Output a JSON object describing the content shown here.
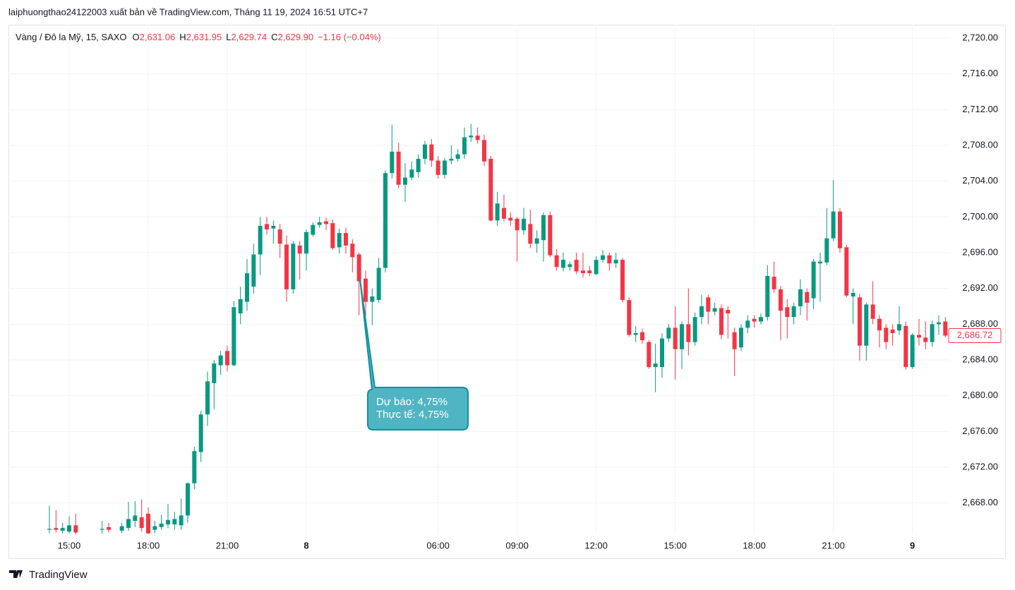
{
  "header": {
    "text": "laiphuongthao24122003 xuất bản về TradingView.com, Tháng 11 19, 2024 16:51 UTC+7"
  },
  "logo": {
    "text": "TradingView"
  },
  "chart_data": {
    "type": "candlestick",
    "legend": {
      "symbol": "Vàng / Đô la Mỹ, 15, SAXO",
      "fields": [
        {
          "label": "O",
          "value": "2,631.06"
        },
        {
          "label": "H",
          "value": "2,631.95"
        },
        {
          "label": "L",
          "value": "2,629.74"
        },
        {
          "label": "C",
          "value": "2,629.90"
        }
      ],
      "change": "−1.16 (−0.04%)"
    },
    "up_color": "#089981",
    "down_color": "#f23645",
    "grid": true,
    "annotation": {
      "lines": [
        "Dự báo: 4,75%",
        "Thực tế: 4,75%"
      ]
    },
    "last_price": {
      "value": 2686.72,
      "label": "2,686.72"
    },
    "ylim": [
      2664.5,
      2721.5
    ],
    "yticks": [
      {
        "value": 2668,
        "label": "2,668.00"
      },
      {
        "value": 2672,
        "label": "2,672.00"
      },
      {
        "value": 2676,
        "label": "2,676.00"
      },
      {
        "value": 2680,
        "label": "2,680.00"
      },
      {
        "value": 2684,
        "label": "2,684.00"
      },
      {
        "value": 2688,
        "label": "2,688.00"
      },
      {
        "value": 2692,
        "label": "2,692.00"
      },
      {
        "value": 2696,
        "label": "2,696.00"
      },
      {
        "value": 2700,
        "label": "2,700.00"
      },
      {
        "value": 2704,
        "label": "2,704.00"
      },
      {
        "value": 2708,
        "label": "2,708.00"
      },
      {
        "value": 2712,
        "label": "2,712.00"
      },
      {
        "value": 2716,
        "label": "2,716.00"
      },
      {
        "value": 2720,
        "label": "2,720.00"
      }
    ],
    "categories": [
      null,
      null,
      null,
      "15:00",
      null,
      null,
      null,
      null,
      null,
      null,
      null,
      null,
      null,
      null,
      null,
      "18:00",
      null,
      null,
      null,
      null,
      null,
      null,
      null,
      null,
      null,
      null,
      null,
      "21:00",
      null,
      null,
      null,
      null,
      null,
      null,
      null,
      null,
      null,
      null,
      null,
      "8",
      null,
      null,
      null,
      null,
      null,
      null,
      null,
      null,
      null,
      null,
      null,
      null,
      null,
      null,
      null,
      null,
      null,
      null,
      null,
      "06:00",
      null,
      null,
      null,
      null,
      null,
      null,
      null,
      null,
      null,
      null,
      null,
      "09:00",
      null,
      null,
      null,
      null,
      null,
      null,
      null,
      null,
      null,
      null,
      null,
      "12:00",
      null,
      null,
      null,
      null,
      null,
      null,
      null,
      null,
      null,
      null,
      null,
      "15:00",
      null,
      null,
      null,
      null,
      null,
      null,
      null,
      null,
      null,
      null,
      null,
      "18:00",
      null,
      null,
      null,
      null,
      null,
      null,
      null,
      null,
      null,
      null,
      null,
      "21:00",
      null,
      null,
      null,
      null,
      null,
      null,
      null,
      null,
      null,
      null,
      null,
      "9",
      null,
      null,
      null,
      null,
      null
    ],
    "open": [
      2665.0,
      2665.2,
      2664.9,
      2664.8,
      2665.5,
      null,
      null,
      null,
      2665.0,
      2665.3,
      null,
      2664.9,
      2665.2,
      2666.0,
      2666.4,
      2666.8,
      2665.0,
      2665.3,
      2665.6,
      2665.6,
      2665.5,
      2666.6,
      2670.2,
      2673.7,
      2677.9,
      2681.4,
      2683.4,
      2685.0,
      2683.4,
      2689.2,
      2690.5,
      2692.2,
      2695.8,
      2699.2,
      2698.7,
      2698.6,
      2696.9,
      2691.9,
      2696.8,
      2695.9,
      2698.0,
      2699.1,
      2699.5,
      2699.3,
      2696.6,
      2698.2,
      2697.0,
      2695.8,
      2693.1,
      2690.5,
      2690.7,
      2694.3,
      2704.9,
      2707.3,
      2703.6,
      2704.4,
      2705.0,
      2706.5,
      2708.1,
      2706.3,
      2704.7,
      2706.3,
      2706.5,
      2707.0,
      2708.9,
      2709.1,
      2708.6,
      2706.5,
      2699.6,
      2701.0,
      2699.9,
      2699.8,
      2698.5,
      2699.2,
      2697.0,
      2697.4,
      2700.2,
      2695.7,
      2694.3,
      2694.4,
      2695.2,
      2694.0,
      2694.0,
      2693.6,
      2695.2,
      2695.7,
      2694.8,
      2695.2,
      2690.7,
      2686.8,
      2687.1,
      2686.0,
      2683.2,
      2683.2,
      2686.4,
      2687.6,
      2685.2,
      2688.0,
      2686.0,
      2688.8,
      2691.0,
      2689.4,
      2689.8,
      2689.6,
      2687.1,
      2685.4,
      2687.6,
      2688.6,
      2688.3,
      2688.8,
      2693.3,
      2691.9,
      2689.9,
      2688.8,
      2690.0,
      2691.6,
      2690.9,
      2694.8,
      2694.9,
      2697.6,
      2700.6,
      2696.6,
      2691.1,
      2691.0,
      2685.6,
      2690.2,
      2688.6,
      2687.6,
      2687.4,
      2687.3,
      2687.8,
      2683.2,
      2686.8,
      2686.5,
      2686.0,
      2688.0,
      2688.3
    ],
    "high": [
      2667.7,
      2667.2,
      2665.8,
      2666.5,
      2666.8,
      null,
      null,
      null,
      2666.0,
      2665.8,
      null,
      2665.8,
      2668.1,
      2668.2,
      2668.4,
      2667.5,
      2666.0,
      2666.7,
      2667.9,
      2667.0,
      2668.5,
      2670.3,
      2674.3,
      2678.3,
      2682.7,
      2684.0,
      2685.0,
      2685.6,
      2690.6,
      2692.2,
      2695.3,
      2697.0,
      2700.0,
      2700.0,
      2699.6,
      2699.2,
      2697.9,
      2697.3,
      2697.3,
      2698.6,
      2699.4,
      2700.0,
      2699.9,
      2699.7,
      2698.7,
      2698.8,
      2697.5,
      2696.0,
      2694.0,
      2692.0,
      2695.4,
      2705.2,
      2710.3,
      2708.3,
      2706.0,
      2706.2,
      2707.0,
      2708.5,
      2708.7,
      2706.8,
      2706.6,
      2708.0,
      2707.6,
      2710.0,
      2710.4,
      2710.0,
      2709.2,
      2706.8,
      2702.8,
      2702.5,
      2700.5,
      2700.0,
      2701.0,
      2700.8,
      2698.5,
      2700.5,
      2700.6,
      2696.4,
      2696.0,
      2695.0,
      2696.0,
      2696.0,
      2694.5,
      2695.6,
      2696.3,
      2696.0,
      2696.0,
      2695.4,
      2691.0,
      2687.8,
      2687.5,
      2686.2,
      2685.8,
      2687.0,
      2688.0,
      2690.0,
      2688.3,
      2692.0,
      2689.3,
      2691.3,
      2691.3,
      2690.4,
      2690.2,
      2690.0,
      2687.6,
      2688.0,
      2689.0,
      2689.0,
      2689.2,
      2694.6,
      2695.0,
      2692.3,
      2690.8,
      2690.4,
      2693.0,
      2692.0,
      2695.3,
      2696.0,
      2701.0,
      2704.1,
      2701.0,
      2696.9,
      2692.0,
      2691.4,
      2690.4,
      2692.8,
      2689.0,
      2688.0,
      2688.0,
      2690.0,
      2688.3,
      2687.0,
      2688.6,
      2688.3,
      2688.4,
      2689.0,
      2688.8
    ],
    "low": [
      2664.6,
      2664.7,
      2664.6,
      2664.6,
      2664.5,
      null,
      null,
      null,
      2664.6,
      2664.7,
      null,
      2664.6,
      2664.9,
      2665.3,
      2664.8,
      2664.5,
      2664.6,
      2665.0,
      2665.2,
      2665.0,
      2665.0,
      2665.8,
      2669.5,
      2672.6,
      2676.6,
      2678.5,
      2682.3,
      2682.7,
      2683.3,
      2688.0,
      2689.5,
      2691.4,
      2693.5,
      2698.0,
      2697.0,
      2695.4,
      2690.5,
      2691.4,
      2693.0,
      2694.0,
      2697.8,
      2698.8,
      2698.5,
      2696.3,
      2695.9,
      2695.9,
      2693.8,
      2689.0,
      2688.6,
      2687.9,
      2690.4,
      2693.8,
      2704.3,
      2703.2,
      2701.7,
      2704.1,
      2704.4,
      2705.9,
      2705.6,
      2704.3,
      2704.3,
      2705.9,
      2706.2,
      2706.5,
      2708.4,
      2708.2,
      2705.7,
      2699.5,
      2699.0,
      2699.5,
      2699.0,
      2695.0,
      2698.0,
      2696.5,
      2696.0,
      2695.0,
      2695.5,
      2694.0,
      2693.9,
      2694.0,
      2693.6,
      2693.2,
      2693.4,
      2693.5,
      2694.9,
      2694.0,
      2694.3,
      2690.4,
      2686.6,
      2686.0,
      2685.8,
      2683.0,
      2680.4,
      2682.0,
      2686.0,
      2681.8,
      2683.0,
      2684.5,
      2685.6,
      2688.0,
      2688.0,
      2689.0,
      2686.3,
      2686.4,
      2682.2,
      2685.0,
      2687.0,
      2687.6,
      2688.0,
      2688.4,
      2691.5,
      2686.2,
      2686.4,
      2688.0,
      2689.0,
      2688.4,
      2689.7,
      2690.5,
      2694.6,
      2697.3,
      2696.0,
      2691.0,
      2688.0,
      2683.9,
      2683.9,
      2688.0,
      2685.4,
      2685.2,
      2685.6,
      2686.8,
      2682.9,
      2683.0,
      2685.6,
      2685.2,
      2685.5,
      2686.8,
      2686.5
    ],
    "close": [
      2665.1,
      2665.0,
      2665.2,
      2665.5,
      2664.7,
      null,
      null,
      null,
      2665.1,
      2665.0,
      null,
      2665.4,
      2666.2,
      2666.6,
      2665.2,
      2664.6,
      2665.4,
      2665.7,
      2666.1,
      2666.2,
      2666.6,
      2670.2,
      2673.8,
      2677.9,
      2681.6,
      2683.6,
      2684.5,
      2683.4,
      2689.9,
      2690.8,
      2693.7,
      2695.8,
      2699.0,
      2698.6,
      2699.0,
      2697.0,
      2691.9,
      2697.0,
      2695.9,
      2698.3,
      2699.1,
      2699.4,
      2699.2,
      2696.5,
      2698.2,
      2696.8,
      2695.5,
      2692.8,
      2690.5,
      2691.1,
      2694.3,
      2704.9,
      2707.3,
      2703.6,
      2704.4,
      2705.3,
      2706.5,
      2708.1,
      2706.3,
      2704.7,
      2706.3,
      2706.5,
      2707.0,
      2708.9,
      2709.1,
      2708.6,
      2706.2,
      2699.6,
      2701.5,
      2699.8,
      2699.6,
      2698.5,
      2699.8,
      2697.0,
      2697.6,
      2700.2,
      2695.7,
      2694.4,
      2695.2,
      2694.7,
      2693.9,
      2693.7,
      2693.7,
      2695.2,
      2695.7,
      2694.8,
      2695.2,
      2690.7,
      2686.8,
      2687.0,
      2686.2,
      2683.2,
      2683.6,
      2686.4,
      2687.6,
      2685.2,
      2688.0,
      2686.0,
      2688.8,
      2690.0,
      2689.4,
      2689.8,
      2686.8,
      2689.2,
      2685.2,
      2687.6,
      2688.4,
      2688.3,
      2688.8,
      2693.4,
      2691.9,
      2689.5,
      2688.8,
      2690.0,
      2691.9,
      2690.4,
      2695.0,
      2695.0,
      2697.6,
      2700.6,
      2696.5,
      2691.2,
      2691.5,
      2685.6,
      2690.2,
      2688.6,
      2687.3,
      2686.0,
      2687.0,
      2688.0,
      2683.2,
      2686.8,
      2686.5,
      2686.0,
      2688.0,
      2688.2,
      2686.72
    ]
  }
}
